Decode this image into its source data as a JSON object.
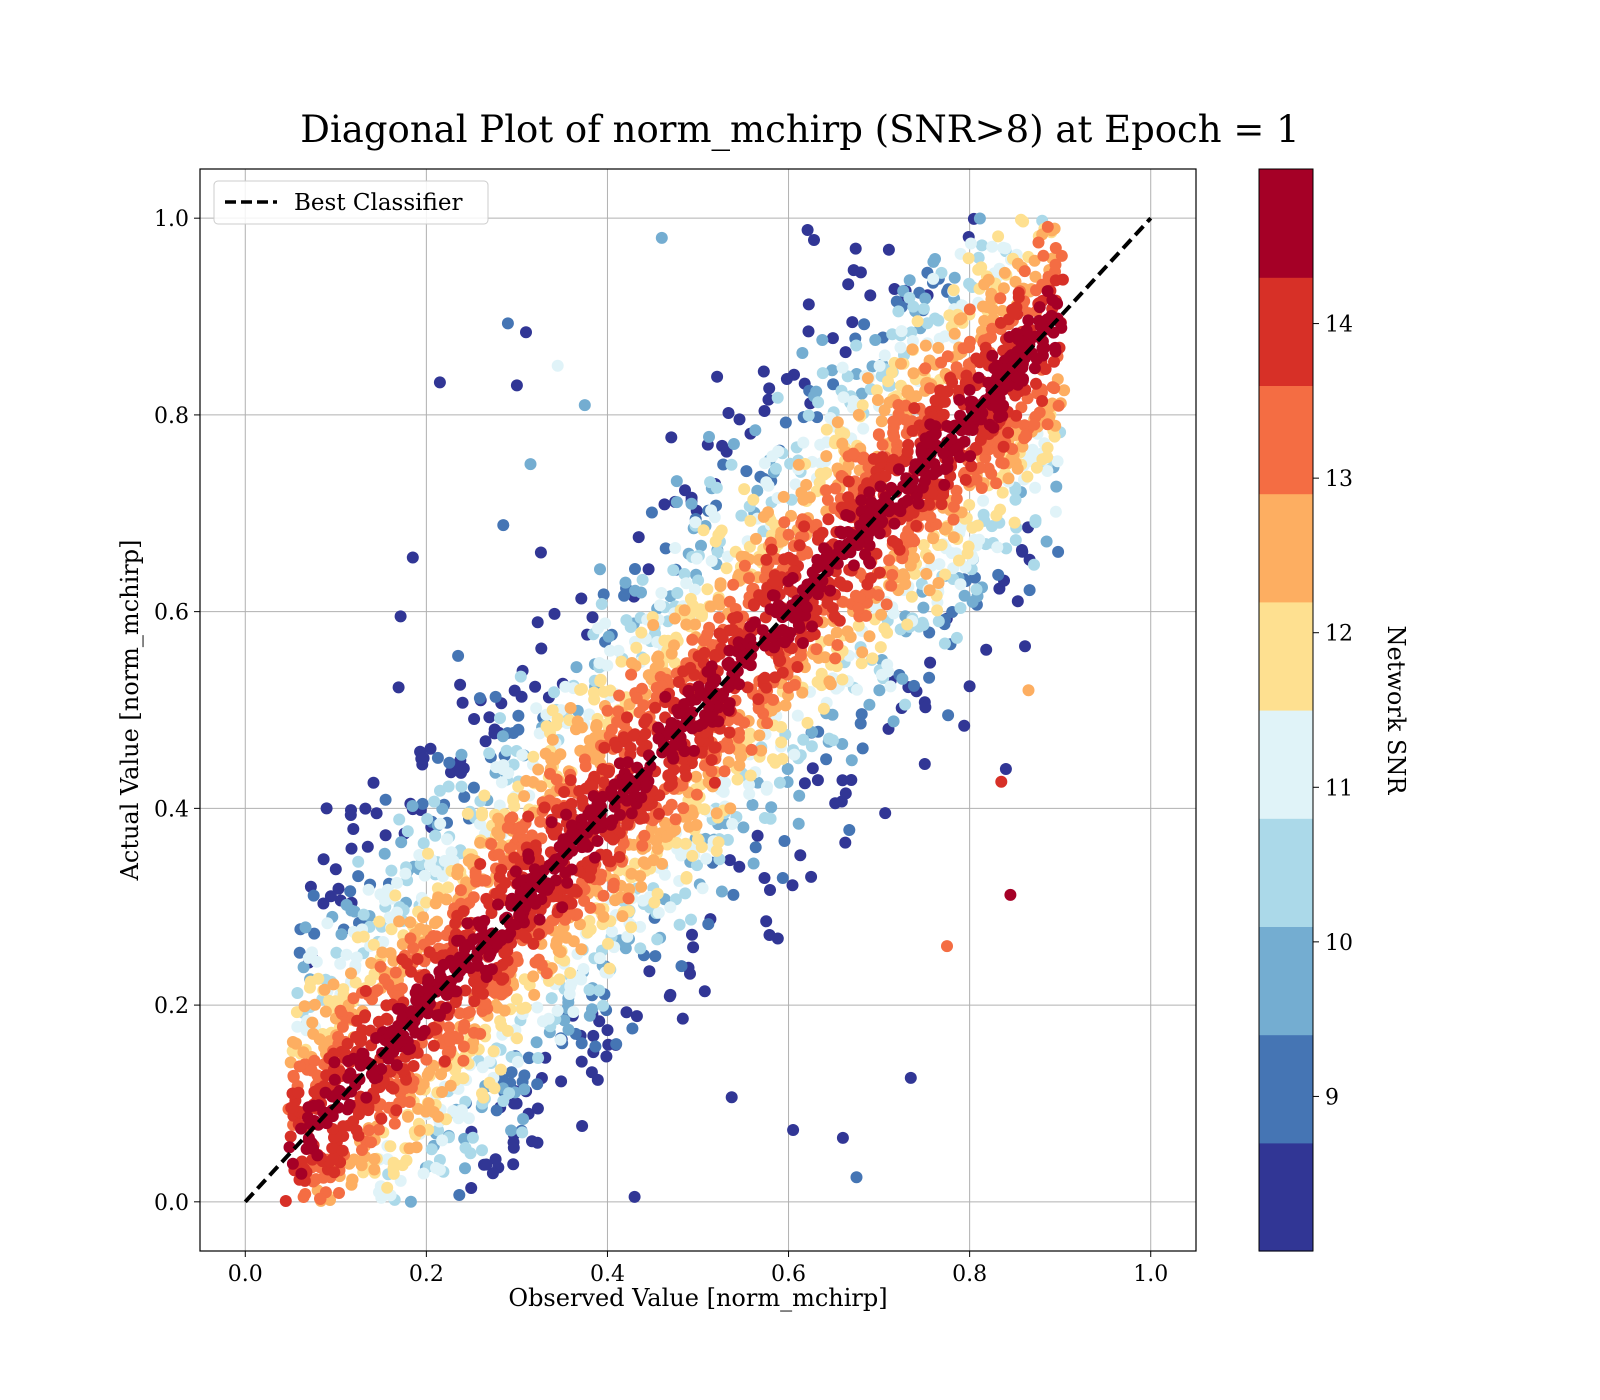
{
  "chart_data": {
    "type": "scatter",
    "title": "Diagonal Plot of norm_mchirp (SNR>8) at Epoch = 1",
    "xlabel": "Observed Value [norm_mchirp]",
    "ylabel": "Actual Value [norm_mchirp]",
    "xlim": [
      -0.05,
      1.05
    ],
    "ylim": [
      -0.05,
      1.05
    ],
    "x_ticks": [
      "0.0",
      "0.2",
      "0.4",
      "0.6",
      "0.8",
      "1.0"
    ],
    "y_ticks": [
      "0.0",
      "0.2",
      "0.4",
      "0.6",
      "0.8",
      "1.0"
    ],
    "grid": true,
    "legend": {
      "position": "top-left",
      "entries": [
        {
          "label": "Best Classifier",
          "style": "black dashed line"
        }
      ]
    },
    "reference_line": {
      "name": "Best Classifier",
      "x": [
        0.0,
        1.0
      ],
      "y": [
        0.0,
        1.0
      ],
      "color": "#000000",
      "dash": true
    },
    "colorbar": {
      "label": "Network SNR",
      "range": [
        8.0,
        15.0
      ],
      "tick_values": [
        9,
        10,
        11,
        12,
        13,
        14
      ],
      "tick_labels": [
        "9",
        "10",
        "11",
        "12",
        "13",
        "14"
      ],
      "colormap": "RdYlBu_r",
      "levels": [
        "#313695",
        "#4575b4",
        "#74add1",
        "#abd9e9",
        "#e0f3f8",
        "#fee090",
        "#fdae61",
        "#f46d43",
        "#d73027",
        "#a50026"
      ]
    },
    "scatter_summary": {
      "observed_range": [
        0.05,
        0.9
      ],
      "actual_range": [
        0.0,
        1.0
      ],
      "trend": "points cluster along the diagonal; high SNR points (dark red) form a dense band around y = x, lower SNR points (blue) scatter further away"
    },
    "outlier_points": [
      {
        "x": 0.185,
        "y": 0.655,
        "snr": 8.2
      },
      {
        "x": 0.215,
        "y": 0.833,
        "snr": 8.3
      },
      {
        "x": 0.29,
        "y": 0.893,
        "snr": 9.0
      },
      {
        "x": 0.31,
        "y": 0.884,
        "snr": 8.2
      },
      {
        "x": 0.3,
        "y": 0.83,
        "snr": 8.4
      },
      {
        "x": 0.1,
        "y": 0.338,
        "snr": 8.6
      },
      {
        "x": 0.145,
        "y": 0.395,
        "snr": 8.4
      },
      {
        "x": 0.285,
        "y": 0.688,
        "snr": 9.1
      },
      {
        "x": 0.315,
        "y": 0.75,
        "snr": 9.5
      },
      {
        "x": 0.235,
        "y": 0.555,
        "snr": 9.2
      },
      {
        "x": 0.26,
        "y": 0.51,
        "snr": 8.5
      },
      {
        "x": 0.345,
        "y": 0.85,
        "snr": 10.9
      },
      {
        "x": 0.46,
        "y": 0.98,
        "snr": 9.6
      },
      {
        "x": 0.375,
        "y": 0.81,
        "snr": 9.7
      },
      {
        "x": 0.07,
        "y": 0.248,
        "snr": 11.0
      },
      {
        "x": 0.845,
        "y": 0.312,
        "snr": 14.9
      },
      {
        "x": 0.835,
        "y": 0.427,
        "snr": 14.0
      },
      {
        "x": 0.735,
        "y": 0.126,
        "snr": 8.3
      },
      {
        "x": 0.675,
        "y": 0.025,
        "snr": 9.2
      },
      {
        "x": 0.43,
        "y": 0.005,
        "snr": 8.4
      },
      {
        "x": 0.66,
        "y": 0.065,
        "snr": 8.3
      },
      {
        "x": 0.605,
        "y": 0.073,
        "snr": 8.2
      },
      {
        "x": 0.775,
        "y": 0.26,
        "snr": 13.4
      },
      {
        "x": 0.84,
        "y": 0.44,
        "snr": 8.2
      },
      {
        "x": 0.865,
        "y": 0.52,
        "snr": 12.6
      },
      {
        "x": 0.165,
        "y": 0.002,
        "snr": 10.4
      }
    ]
  }
}
